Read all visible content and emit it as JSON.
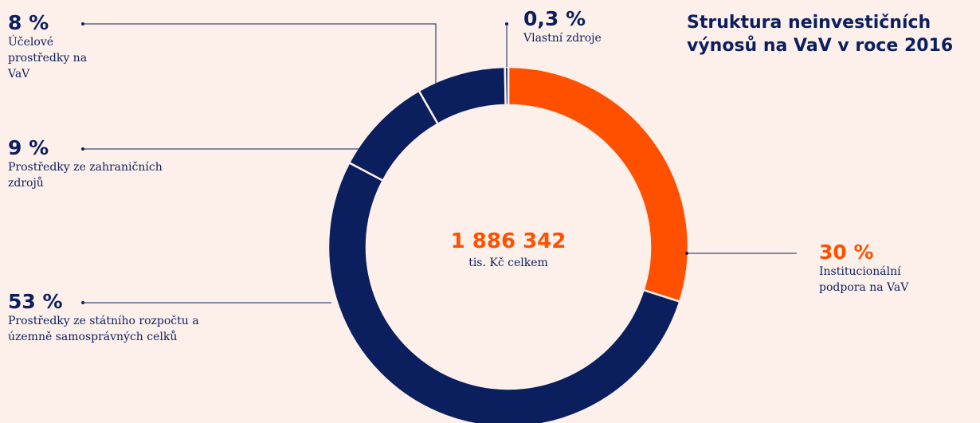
{
  "chart_data": {
    "type": "donut",
    "title": "Struktura neinvestičních výnosů na VaV v roce 2016",
    "center_value": "1 886 342",
    "center_label": "tis. Kč celkem",
    "categories": [
      "Institucionální podpora na VaV",
      "Prostředky ze státního rozpočtu a územně samosprávných celků",
      "Prostředky ze zahraničních zdrojů",
      "Účelové prostředky na VaV",
      "Vlastní zdroje"
    ],
    "values": [
      30,
      53,
      9,
      8,
      0.3
    ],
    "value_labels": [
      "30 %",
      "53 %",
      "9 %",
      "8 %",
      "0,3 %"
    ],
    "colors": [
      "#ff5000",
      "#0b1f5e",
      "#0b1f5e",
      "#0b1f5e",
      "#0b1f5e"
    ]
  }
}
